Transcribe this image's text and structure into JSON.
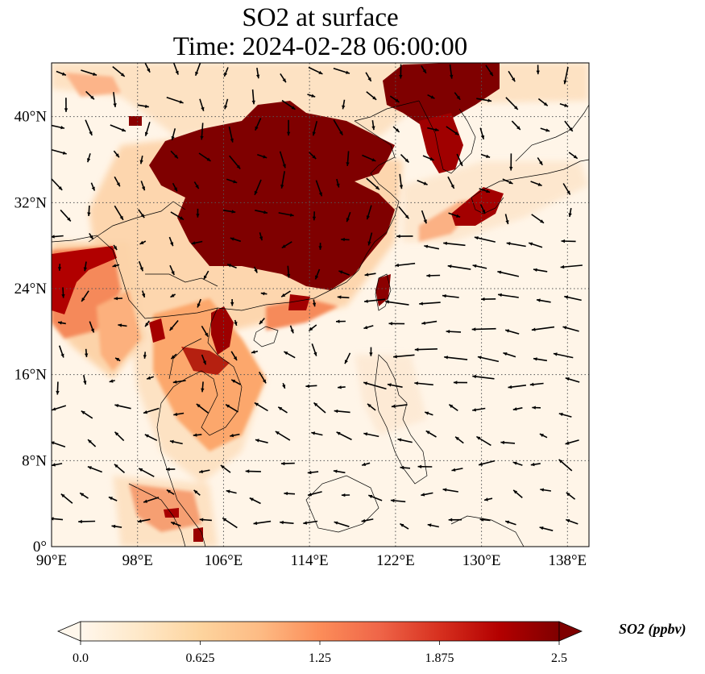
{
  "title": "SO2 at surface",
  "subtitle": "Time: 2024-02-28 06:00:00",
  "map": {
    "lon_range": [
      90,
      140
    ],
    "lat_range": [
      0,
      45
    ],
    "lon_ticks": [
      {
        "value": 90,
        "label": "90°E"
      },
      {
        "value": 98,
        "label": "98°E"
      },
      {
        "value": 106,
        "label": "106°E"
      },
      {
        "value": 114,
        "label": "114°E"
      },
      {
        "value": 122,
        "label": "122°E"
      },
      {
        "value": 130,
        "label": "130°E"
      },
      {
        "value": 138,
        "label": "138°E"
      }
    ],
    "lat_ticks": [
      {
        "value": 0,
        "label": "0°"
      },
      {
        "value": 8,
        "label": "8°N"
      },
      {
        "value": 16,
        "label": "16°N"
      },
      {
        "value": 24,
        "label": "24°N"
      },
      {
        "value": 32,
        "label": "32°N"
      },
      {
        "value": 40,
        "label": "40°N"
      }
    ],
    "gridlines": true,
    "gridline_style": "dotted",
    "colormap": "OrRd",
    "background_color": "#fff5e8",
    "high_color": "#7f0000"
  },
  "colorbar": {
    "label": "SO2 (ppbv)",
    "min": 0.0,
    "max": 2.5,
    "extend": "both",
    "ticks": [
      "0.0",
      "0.625",
      "1.25",
      "1.875",
      "2.5"
    ],
    "colors": [
      "#fff7ec",
      "#fee8c8",
      "#fdd49e",
      "#fdbb84",
      "#fc8d59",
      "#ef6548",
      "#d7301f",
      "#b30000",
      "#7f0000"
    ]
  }
}
